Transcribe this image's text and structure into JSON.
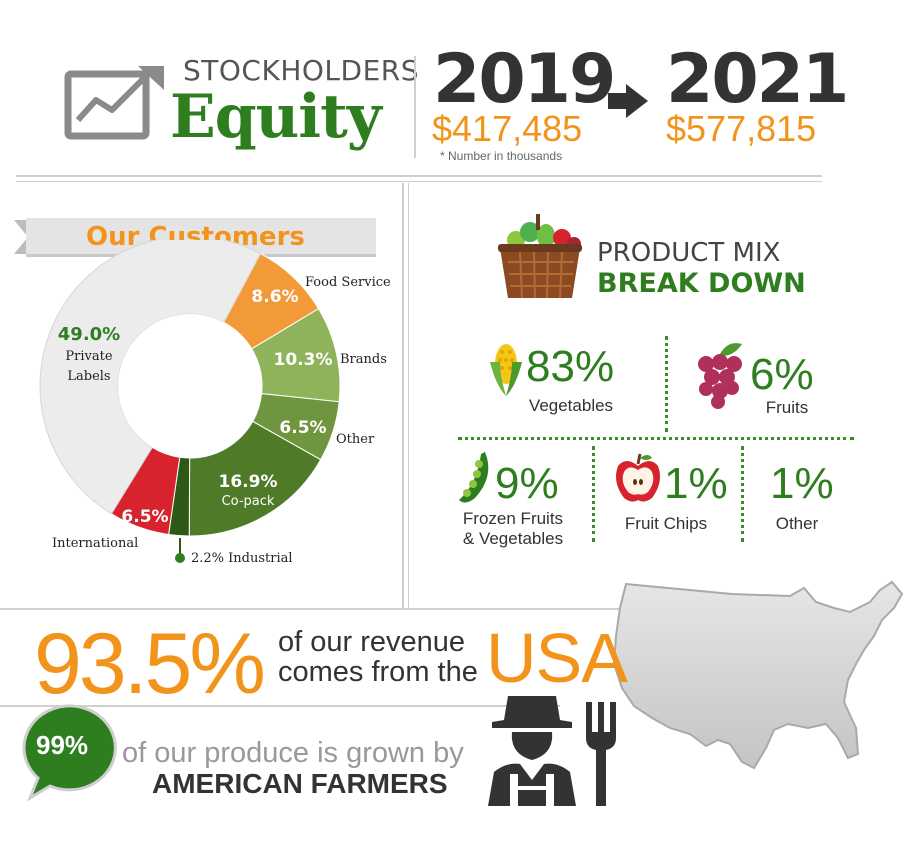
{
  "header": {
    "title_top": "STOCKHOLDERS",
    "title_main": "Equity",
    "year_from": "2019",
    "value_from": "$417,485",
    "year_to": "2021",
    "value_to": "$577,815",
    "footnote": "* Number in thousands",
    "icon": "trending-up-chart-icon",
    "arrow_icon": "right-arrow-icon"
  },
  "customers": {
    "title": "Our Customers",
    "private_pct": "49.0%",
    "private_label_1": "Private",
    "private_label_2": "Labels",
    "food_service_pct": "8.6%",
    "food_service_label": "Food Service",
    "brands_pct": "10.3%",
    "brands_label": "Brands",
    "other_pct": "6.5%",
    "other_label": "Other",
    "copack_pct": "16.9%",
    "copack_label": "Co-pack",
    "industrial_label": "2.2% Industrial",
    "international_pct": "6.5%",
    "international_label": "International"
  },
  "chart_data": {
    "type": "pie",
    "title": "Our Customers",
    "categories": [
      "Private Labels",
      "Food Service",
      "Brands",
      "Other",
      "Co-pack",
      "Industrial",
      "International"
    ],
    "values": [
      49.0,
      8.6,
      10.3,
      6.5,
      16.9,
      2.2,
      6.5
    ],
    "colors": [
      "#ececec",
      "#f29a38",
      "#8fb35a",
      "#6f953e",
      "#4f7a27",
      "#2f5a16",
      "#d6232e"
    ]
  },
  "product_mix": {
    "title_1": "PRODUCT MIX",
    "title_2": "BREAK DOWN",
    "basket_icon": "vegetable-basket-icon",
    "vegetables_pct": "83%",
    "vegetables_label": "Vegetables",
    "fruits_pct": "6%",
    "fruits_label": "Fruits",
    "frozen_pct": "9%",
    "frozen_label_1": "Frozen Fruits",
    "frozen_label_2": "& Vegetables",
    "chips_pct": "1%",
    "chips_label": "Fruit Chips",
    "other_pct": "1%",
    "other_label": "Other"
  },
  "usa": {
    "pct": "93.5%",
    "line1": "of our revenue",
    "line2": "comes from the",
    "word": "USA",
    "map_icon": "usa-map-icon"
  },
  "farmers": {
    "pct": "99%",
    "line1": "of our produce is grown by",
    "line2": "AMERICAN FARMERS",
    "farmer_icon": "farmer-icon"
  }
}
